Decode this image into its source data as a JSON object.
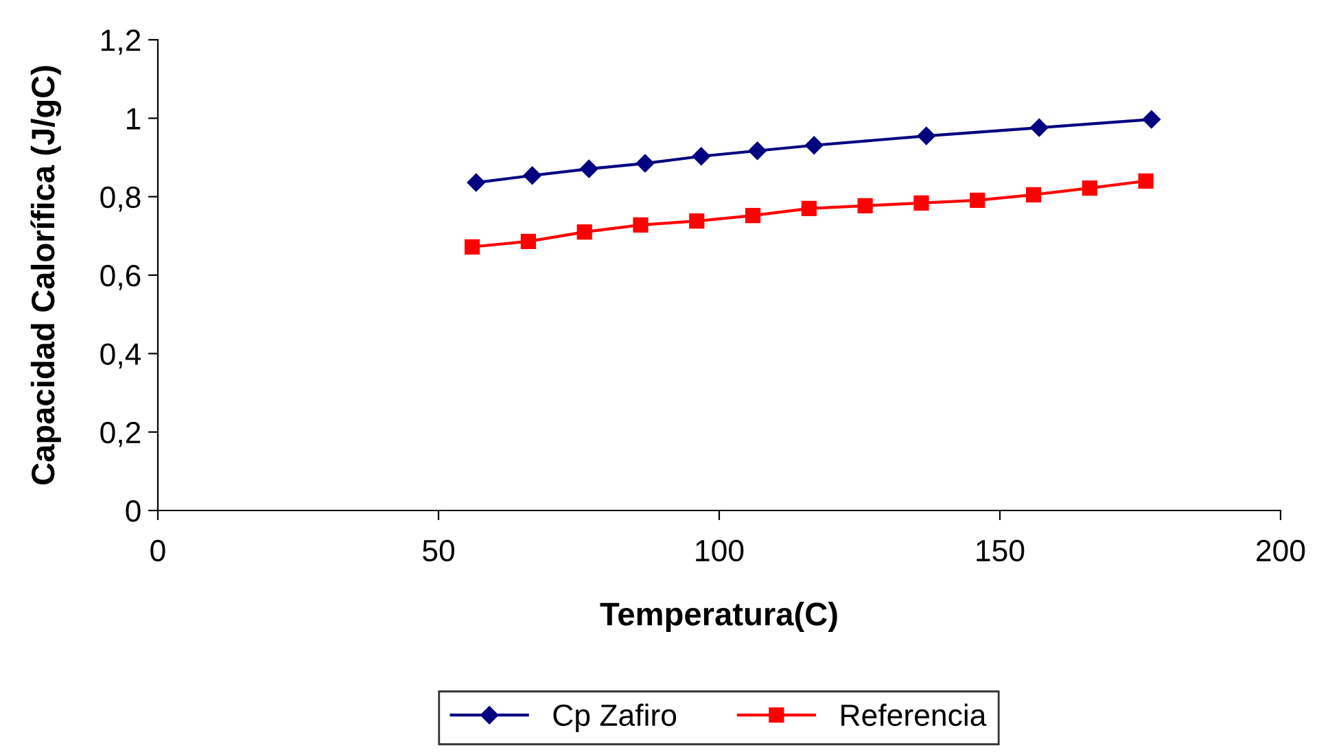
{
  "chart_data": {
    "type": "line",
    "xlabel": "Temperatura(C)",
    "ylabel": "Capacidad Calorífica (J/gC)",
    "xlim": [
      0,
      200
    ],
    "xticks": [
      0,
      50,
      100,
      150,
      200
    ],
    "ylim": [
      0,
      1.2
    ],
    "yticks": [
      0,
      {
        "value": 0.2,
        "label": "0,2"
      },
      {
        "value": 0.4,
        "label": "0,4"
      },
      {
        "value": 0.6,
        "label": "0,6"
      },
      {
        "value": 0.8,
        "label": "0,8"
      },
      1,
      {
        "value": 1.2,
        "label": "1,2"
      }
    ],
    "grid": false,
    "legend": "bottom",
    "series": [
      {
        "name": "Cp Zafiro",
        "color": "#000080",
        "marker": "diamond",
        "x": [
          56.7,
          66.7,
          76.8,
          86.8,
          96.8,
          106.8,
          116.9,
          136.9,
          157,
          177
        ],
        "values": [
          0.836,
          0.854,
          0.871,
          0.885,
          0.903,
          0.917,
          0.931,
          0.955,
          0.976,
          0.997
        ]
      },
      {
        "name": "Referencia",
        "color": "#ff0000",
        "marker": "square",
        "x": [
          56,
          66,
          76,
          86,
          96,
          106,
          116,
          126,
          136,
          146,
          156,
          166,
          176
        ],
        "values": [
          0.672,
          0.686,
          0.71,
          0.728,
          0.738,
          0.752,
          0.77,
          0.777,
          0.784,
          0.791,
          0.805,
          0.822,
          0.84
        ]
      }
    ]
  }
}
